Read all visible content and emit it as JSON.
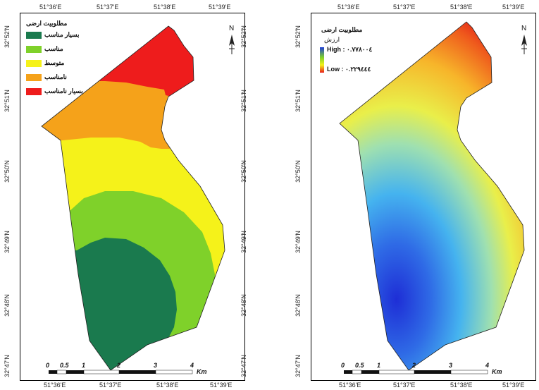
{
  "left_map": {
    "lon_ticks_top": [
      "51°36'E",
      "51°37'E",
      "51°38'E",
      "51°39'E"
    ],
    "lon_ticks_bottom": [
      "51°36'E",
      "51°37'E",
      "51°38'E",
      "51°39'E"
    ],
    "lat_ticks_left": [
      "32°52'N",
      "32°51'N",
      "32°50'N",
      "32°49'N",
      "32°48'N",
      "32°47'N"
    ],
    "lat_ticks_right": [
      "32°52'N",
      "32°51'N",
      "32°50'N",
      "32°49'N",
      "32°48'N",
      "32°47'N"
    ],
    "legend": {
      "title": "مطلوبیت ارضی",
      "items": [
        {
          "label": "بسیار مناسب",
          "color": "#1a7a4e"
        },
        {
          "label": "مناسب",
          "color": "#7fd12a"
        },
        {
          "label": "متوسط",
          "color": "#f5f21a"
        },
        {
          "label": "نامناسب",
          "color": "#f5a21a"
        },
        {
          "label": "بسیار نامناسب",
          "color": "#ee1c1c"
        }
      ]
    },
    "north_label": "N",
    "scale": {
      "ticks": [
        "0",
        "0.5",
        "1",
        "2",
        "3",
        "4"
      ],
      "unit": "Km"
    }
  },
  "right_map": {
    "lon_ticks_top": [
      "51°36'E",
      "51°37'E",
      "51°38'E",
      "51°39'E"
    ],
    "lon_ticks_bottom": [
      "51°36'E",
      "51°37'E",
      "51°38'E",
      "51°39'E"
    ],
    "lat_ticks_left": [
      "32°52'N",
      "32°51'N",
      "32°50'N",
      "32°49'N",
      "32°48'N",
      "32°47'N"
    ],
    "legend": {
      "title": "مطلوبیت ارضی",
      "subtitle": "ارزش",
      "high_label": "High : ۰.۷۷۸۰۰٤",
      "low_label": "Low : ۰.۲۲۹٤٤٤",
      "high_color": "#1e3cd6",
      "low_color": "#e81c1c"
    },
    "north_label": "N",
    "scale": {
      "ticks": [
        "0",
        "0.5",
        "1",
        "2",
        "3",
        "4"
      ],
      "unit": "Km"
    }
  }
}
